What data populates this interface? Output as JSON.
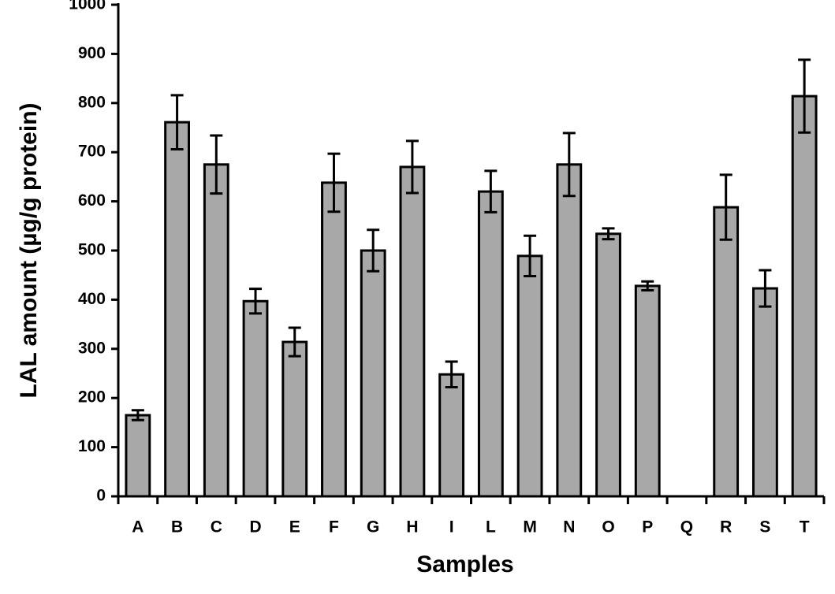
{
  "chart_data": {
    "type": "bar",
    "x_label": "Samples",
    "y_label": "LAL amount  (µg/g protein)",
    "categories": [
      "A",
      "B",
      "C",
      "D",
      "E",
      "F",
      "G",
      "H",
      "I",
      "L",
      "M",
      "N",
      "O",
      "P",
      "Q",
      "R",
      "S",
      "T"
    ],
    "values": [
      165,
      761,
      675,
      397,
      314,
      638,
      500,
      670,
      248,
      620,
      489,
      675,
      534,
      428,
      null,
      588,
      423,
      814
    ],
    "errors": [
      10,
      55,
      59,
      25,
      29,
      59,
      42,
      53,
      26,
      42,
      41,
      64,
      11,
      9,
      null,
      66,
      37,
      74
    ],
    "color": "#a8a8a8",
    "ylim": [
      0,
      1000
    ],
    "yticks": [
      0,
      100,
      200,
      300,
      400,
      500,
      600,
      700,
      800,
      900,
      1000
    ]
  }
}
